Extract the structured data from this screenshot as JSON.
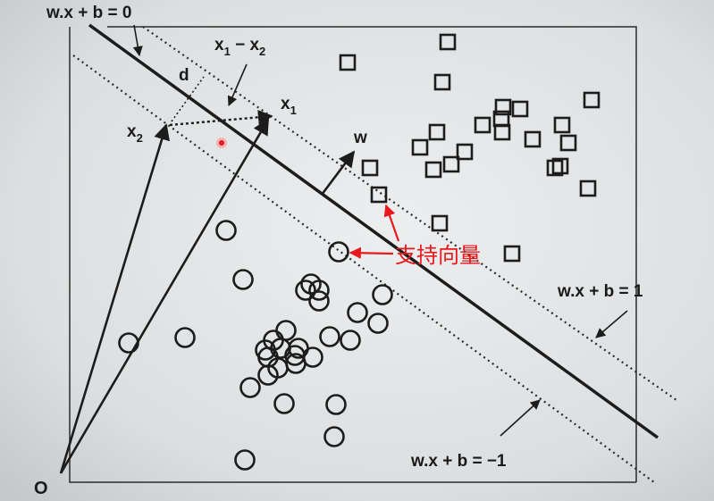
{
  "labels": {
    "hyperplane": "w.x + b = 0",
    "margin_pos": "w.x + b = 1",
    "margin_neg": "w.x + b = −1",
    "origin": "O",
    "normal": "w",
    "distance": "d",
    "x1_base": "x",
    "x1_sub": "1",
    "x2_base": "x",
    "x2_sub": "2",
    "diff_x": "x",
    "diff_sub1": "1",
    "diff_minus": " − x",
    "diff_sub2": "2",
    "support_vector": "支持向量"
  },
  "colors": {
    "paper": "#e4e6e7",
    "ink": "#1c1c1c",
    "annotation": "#e8181b"
  },
  "square_count": 24,
  "circle_count": 30
}
